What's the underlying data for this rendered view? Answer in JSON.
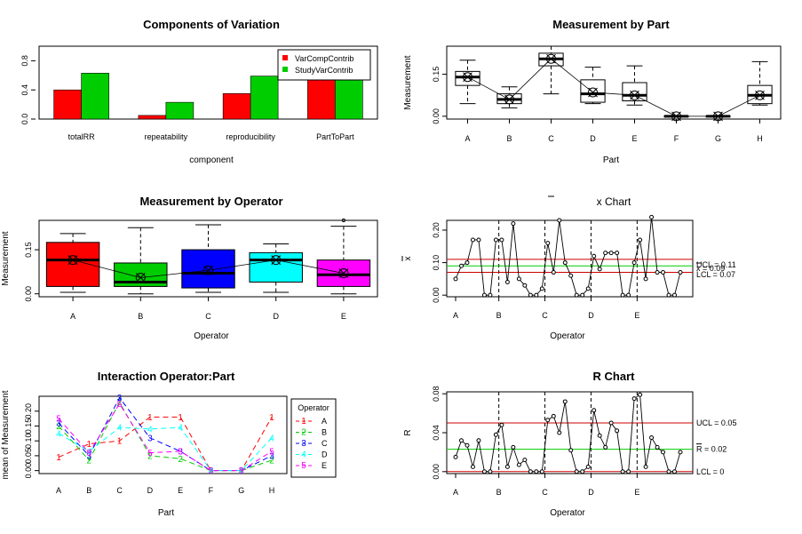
{
  "chart_data": [
    {
      "type": "bar",
      "title": "Components of Variation",
      "xlabel": "component",
      "categories": [
        "totalRR",
        "repeatability",
        "reproducibility",
        "PartToPart"
      ],
      "yticks": [
        "0.0",
        "0.4",
        "0.8"
      ],
      "ylim": [
        0,
        1.0
      ],
      "legend_position": "top-right",
      "series": [
        {
          "name": "VarCompContrib",
          "color": "#ff0000",
          "values": [
            0.4,
            0.05,
            0.35,
            0.6
          ]
        },
        {
          "name": "StudyVarContrib",
          "color": "#00cd00",
          "values": [
            0.63,
            0.23,
            0.59,
            0.78
          ]
        }
      ]
    },
    {
      "type": "box",
      "title": "Measurement by Part",
      "xlabel": "Part",
      "ylabel": "Measurement",
      "categories": [
        "A",
        "B",
        "C",
        "D",
        "E",
        "F",
        "G",
        "H"
      ],
      "yticks": [
        "0.00",
        "0.15"
      ],
      "ylim": [
        -0.01,
        0.25
      ],
      "boxes": [
        {
          "min": 0.045,
          "q1": 0.11,
          "median": 0.14,
          "q3": 0.16,
          "max": 0.2,
          "mean": 0.14
        },
        {
          "min": 0.03,
          "q1": 0.045,
          "median": 0.06,
          "q3": 0.08,
          "max": 0.105,
          "mean": 0.06
        },
        {
          "min": 0.08,
          "q1": 0.18,
          "median": 0.205,
          "q3": 0.225,
          "max": 0.25,
          "mean": 0.205
        },
        {
          "min": 0.045,
          "q1": 0.05,
          "median": 0.08,
          "q3": 0.13,
          "max": 0.175,
          "mean": 0.085
        },
        {
          "min": 0.04,
          "q1": 0.055,
          "median": 0.075,
          "q3": 0.12,
          "max": 0.18,
          "mean": 0.075
        },
        {
          "min": 0.0,
          "q1": 0.0,
          "median": 0.0,
          "q3": 0.0,
          "max": 0.0,
          "mean": 0.0
        },
        {
          "min": 0.0,
          "q1": 0.0,
          "median": 0.0,
          "q3": 0.0,
          "max": 0.0,
          "mean": 0.0
        },
        {
          "min": 0.04,
          "q1": 0.045,
          "median": 0.075,
          "q3": 0.11,
          "max": 0.195,
          "mean": 0.075
        }
      ]
    },
    {
      "type": "box",
      "title": "Measurement by Operator",
      "xlabel": "Operator",
      "ylabel": "Measurement",
      "categories": [
        "A",
        "B",
        "C",
        "D",
        "E"
      ],
      "yticks": [
        "0.00",
        "0.15"
      ],
      "ylim": [
        -0.01,
        0.25
      ],
      "boxes": [
        {
          "min": 0.005,
          "q1": 0.025,
          "median": 0.115,
          "q3": 0.175,
          "max": 0.205,
          "mean": 0.115,
          "color": "#ff0000"
        },
        {
          "min": 0.0,
          "q1": 0.025,
          "median": 0.04,
          "q3": 0.105,
          "max": 0.225,
          "mean": 0.055,
          "color": "#00cd00"
        },
        {
          "min": 0.005,
          "q1": 0.02,
          "median": 0.07,
          "q3": 0.15,
          "max": 0.235,
          "mean": 0.08,
          "color": "#0000ff"
        },
        {
          "min": 0.005,
          "q1": 0.04,
          "median": 0.115,
          "q3": 0.14,
          "max": 0.17,
          "mean": 0.115,
          "color": "#00ffff"
        },
        {
          "min": 0.0,
          "q1": 0.025,
          "median": 0.065,
          "q3": 0.115,
          "max": 0.23,
          "mean": 0.07,
          "color": "#ff00ff",
          "outliers": [
            0.25
          ]
        }
      ]
    },
    {
      "type": "line",
      "title": "x Chart",
      "title_overline": "x",
      "xlabel": "Operator",
      "ylabel": "x",
      "ylabel_overline": true,
      "yticks": [
        "0.00",
        "0.10",
        "0.20"
      ],
      "ylim": [
        -0.005,
        0.23
      ],
      "group_labels": [
        "A",
        "B",
        "C",
        "D",
        "E"
      ],
      "values": [
        0.05,
        0.09,
        0.1,
        0.17,
        0.17,
        0.0,
        0.0,
        0.17,
        0.17,
        0.04,
        0.22,
        0.05,
        0.03,
        0.0,
        0.0,
        0.02,
        0.16,
        0.07,
        0.23,
        0.1,
        0.06,
        0.0,
        0.0,
        0.02,
        0.12,
        0.08,
        0.13,
        0.13,
        0.13,
        0.0,
        0.0,
        0.1,
        0.17,
        0.05,
        0.24,
        0.07,
        0.07,
        0.0,
        0.0,
        0.07
      ],
      "limits": [
        {
          "label": "UCL = 0.11",
          "value": 0.11,
          "color": "#cd0000"
        },
        {
          "label": "x = 0.09",
          "value": 0.09,
          "color": "#00cd00",
          "overline": true
        },
        {
          "label": "LCL = 0.07",
          "value": 0.07,
          "color": "#cd0000"
        }
      ]
    },
    {
      "type": "line",
      "title": "Interaction Operator:Part",
      "xlabel": "Part",
      "ylabel": "mean of Measurement",
      "categories": [
        "A",
        "B",
        "C",
        "D",
        "E",
        "F",
        "G",
        "H"
      ],
      "yticks": [
        "0.00",
        "0.05",
        "0.10",
        "0.15",
        "0.20"
      ],
      "ylim": [
        -0.01,
        0.25
      ],
      "legend_title": "Operator",
      "legend_position": "right",
      "series": [
        {
          "name": "A",
          "marker": "1",
          "color": "#ff0000",
          "values": [
            0.045,
            0.09,
            0.1,
            0.18,
            0.18,
            0.0,
            0.0,
            0.18
          ]
        },
        {
          "name": "B",
          "marker": "2",
          "color": "#00cd00",
          "values": [
            0.15,
            0.035,
            0.23,
            0.05,
            0.04,
            0.0,
            0.0,
            0.035
          ]
        },
        {
          "name": "C",
          "marker": "3",
          "color": "#0000ff",
          "values": [
            0.16,
            0.05,
            0.245,
            0.11,
            0.065,
            0.0,
            0.0,
            0.05
          ]
        },
        {
          "name": "D",
          "marker": "4",
          "color": "#00ffff",
          "values": [
            0.125,
            0.065,
            0.145,
            0.14,
            0.145,
            0.0,
            0.0,
            0.11
          ]
        },
        {
          "name": "E",
          "marker": "5",
          "color": "#ff00ff",
          "values": [
            0.175,
            0.06,
            0.225,
            0.06,
            0.065,
            0.0,
            0.0,
            0.065
          ]
        }
      ]
    },
    {
      "type": "line",
      "title": "R Chart",
      "xlabel": "Operator",
      "ylabel": "R",
      "yticks": [
        "0.00",
        "0.04",
        "0.08"
      ],
      "ylim": [
        -0.002,
        0.082
      ],
      "group_labels": [
        "A",
        "B",
        "C",
        "D",
        "E"
      ],
      "values": [
        0.015,
        0.032,
        0.027,
        0.005,
        0.032,
        0.0,
        0.0,
        0.038,
        0.048,
        0.005,
        0.025,
        0.007,
        0.012,
        0.0,
        0.0,
        0.0,
        0.053,
        0.057,
        0.04,
        0.072,
        0.022,
        0.0,
        0.0,
        0.005,
        0.063,
        0.037,
        0.025,
        0.05,
        0.042,
        0.0,
        0.0,
        0.075,
        0.079,
        0.005,
        0.035,
        0.025,
        0.02,
        0.0,
        0.0,
        0.02
      ],
      "limits": [
        {
          "label": "UCL = 0.05",
          "value": 0.05,
          "color": "#cd0000"
        },
        {
          "label": "R = 0.02",
          "value": 0.023,
          "color": "#00cd00",
          "overline": true
        },
        {
          "label": "LCL = 0",
          "value": 0.0,
          "color": "#cd0000"
        }
      ]
    }
  ]
}
